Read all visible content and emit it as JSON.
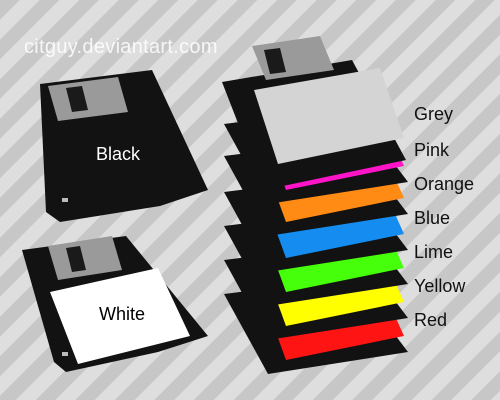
{
  "watermark": "citguy.deviantart.com",
  "disks": [
    {
      "label": "Black",
      "label_color": "#ffffff",
      "face_color": "#000000"
    },
    {
      "label": "White",
      "label_color": "#000000",
      "face_color": "#ffffff"
    }
  ],
  "color_labels": [
    {
      "name": "Grey",
      "color": "#d4d4d4"
    },
    {
      "name": "Pink",
      "color": "#ff14c8"
    },
    {
      "name": "Orange",
      "color": "#ff8a14"
    },
    {
      "name": "Blue",
      "color": "#148cf0"
    },
    {
      "name": "Lime",
      "color": "#46ff0a"
    },
    {
      "name": "Yellow",
      "color": "#ffff00"
    },
    {
      "name": "Red",
      "color": "#ff1414"
    }
  ],
  "colors": {
    "disk_body": "#121212",
    "shutter": "#9a9a9a",
    "shutter_window": "#1a1a1a"
  }
}
